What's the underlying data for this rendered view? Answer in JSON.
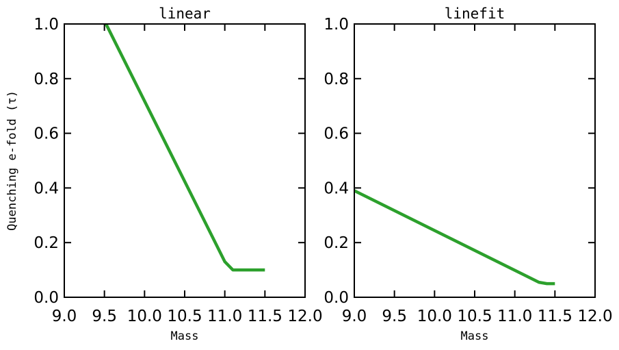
{
  "chart_data": [
    {
      "type": "line",
      "title": "linear",
      "xlabel": "Mass",
      "ylabel": "Quenching e-fold (τ)",
      "xlim": [
        9.0,
        12.0
      ],
      "ylim": [
        0.0,
        1.0
      ],
      "xticks": [
        "9.0",
        "9.5",
        "10.0",
        "10.5",
        "11.0",
        "11.5",
        "12.0"
      ],
      "yticks": [
        "0.0",
        "0.2",
        "0.4",
        "0.6",
        "0.8",
        "1.0"
      ],
      "grid": false,
      "series": [
        {
          "color": "#2ca02c",
          "x": [
            9.52,
            11.0,
            11.1,
            11.5
          ],
          "y": [
            1.0,
            0.13,
            0.1,
            0.1
          ]
        }
      ]
    },
    {
      "type": "line",
      "title": "linefit",
      "xlabel": "Mass",
      "ylabel": "",
      "xlim": [
        9.0,
        12.0
      ],
      "ylim": [
        0.0,
        1.0
      ],
      "xticks": [
        "9.0",
        "9.5",
        "10.0",
        "10.5",
        "11.0",
        "11.5",
        "12.0"
      ],
      "yticks": [
        "0.0",
        "0.2",
        "0.4",
        "0.6",
        "0.8",
        "1.0"
      ],
      "grid": false,
      "series": [
        {
          "color": "#2ca02c",
          "x": [
            9.0,
            11.3,
            11.4,
            11.5
          ],
          "y": [
            0.39,
            0.055,
            0.05,
            0.05
          ]
        }
      ]
    }
  ]
}
